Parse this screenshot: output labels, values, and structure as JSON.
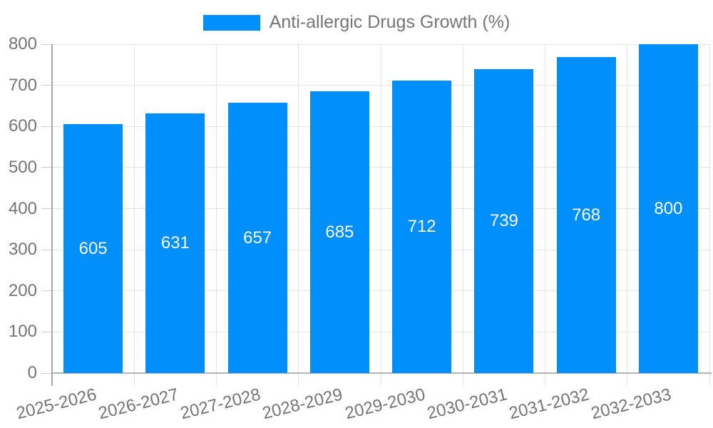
{
  "chart_data": {
    "type": "bar",
    "title": "",
    "legend": "Anti-allergic Drugs Growth (%)",
    "legend_position": "top-center",
    "categories": [
      "2025-2026",
      "2026-2027",
      "2027-2028",
      "2028-2029",
      "2029-2030",
      "2030-2031",
      "2031-2032",
      "2032-2033"
    ],
    "values": [
      605,
      631,
      657,
      685,
      712,
      739,
      768,
      800
    ],
    "value_labels_inside_bars": true,
    "xlabel": "",
    "ylabel": "",
    "ylim": [
      0,
      800
    ],
    "ytick_step": 100,
    "ytick_labels": [
      "0",
      "100",
      "200",
      "300",
      "400",
      "500",
      "600",
      "700",
      "800"
    ],
    "grid": true,
    "colors": {
      "bar": "#008FFB",
      "value_label": "#ffffff",
      "axis_text": "#757575",
      "gridline": "#e3e3e3",
      "axis_line": "#a8a8a8",
      "baseline": "#b3b3b3",
      "tick": "#cccccc",
      "background": "#ffffff"
    }
  }
}
